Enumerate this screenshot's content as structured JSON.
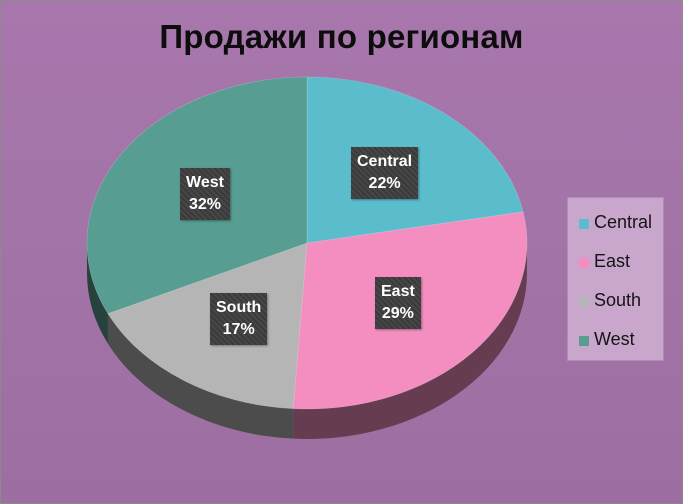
{
  "chart_data": {
    "type": "pie",
    "title": "Продажи по регионам",
    "categories": [
      "Central",
      "East",
      "South",
      "West"
    ],
    "values": [
      22,
      29,
      17,
      32
    ],
    "value_labels": [
      "22%",
      "29%",
      "17%",
      "32%"
    ],
    "colors": [
      "#5bbccc",
      "#f48ec0",
      "#b5b5b5",
      "#579d92"
    ],
    "legend_position": "right",
    "style": "3d"
  }
}
